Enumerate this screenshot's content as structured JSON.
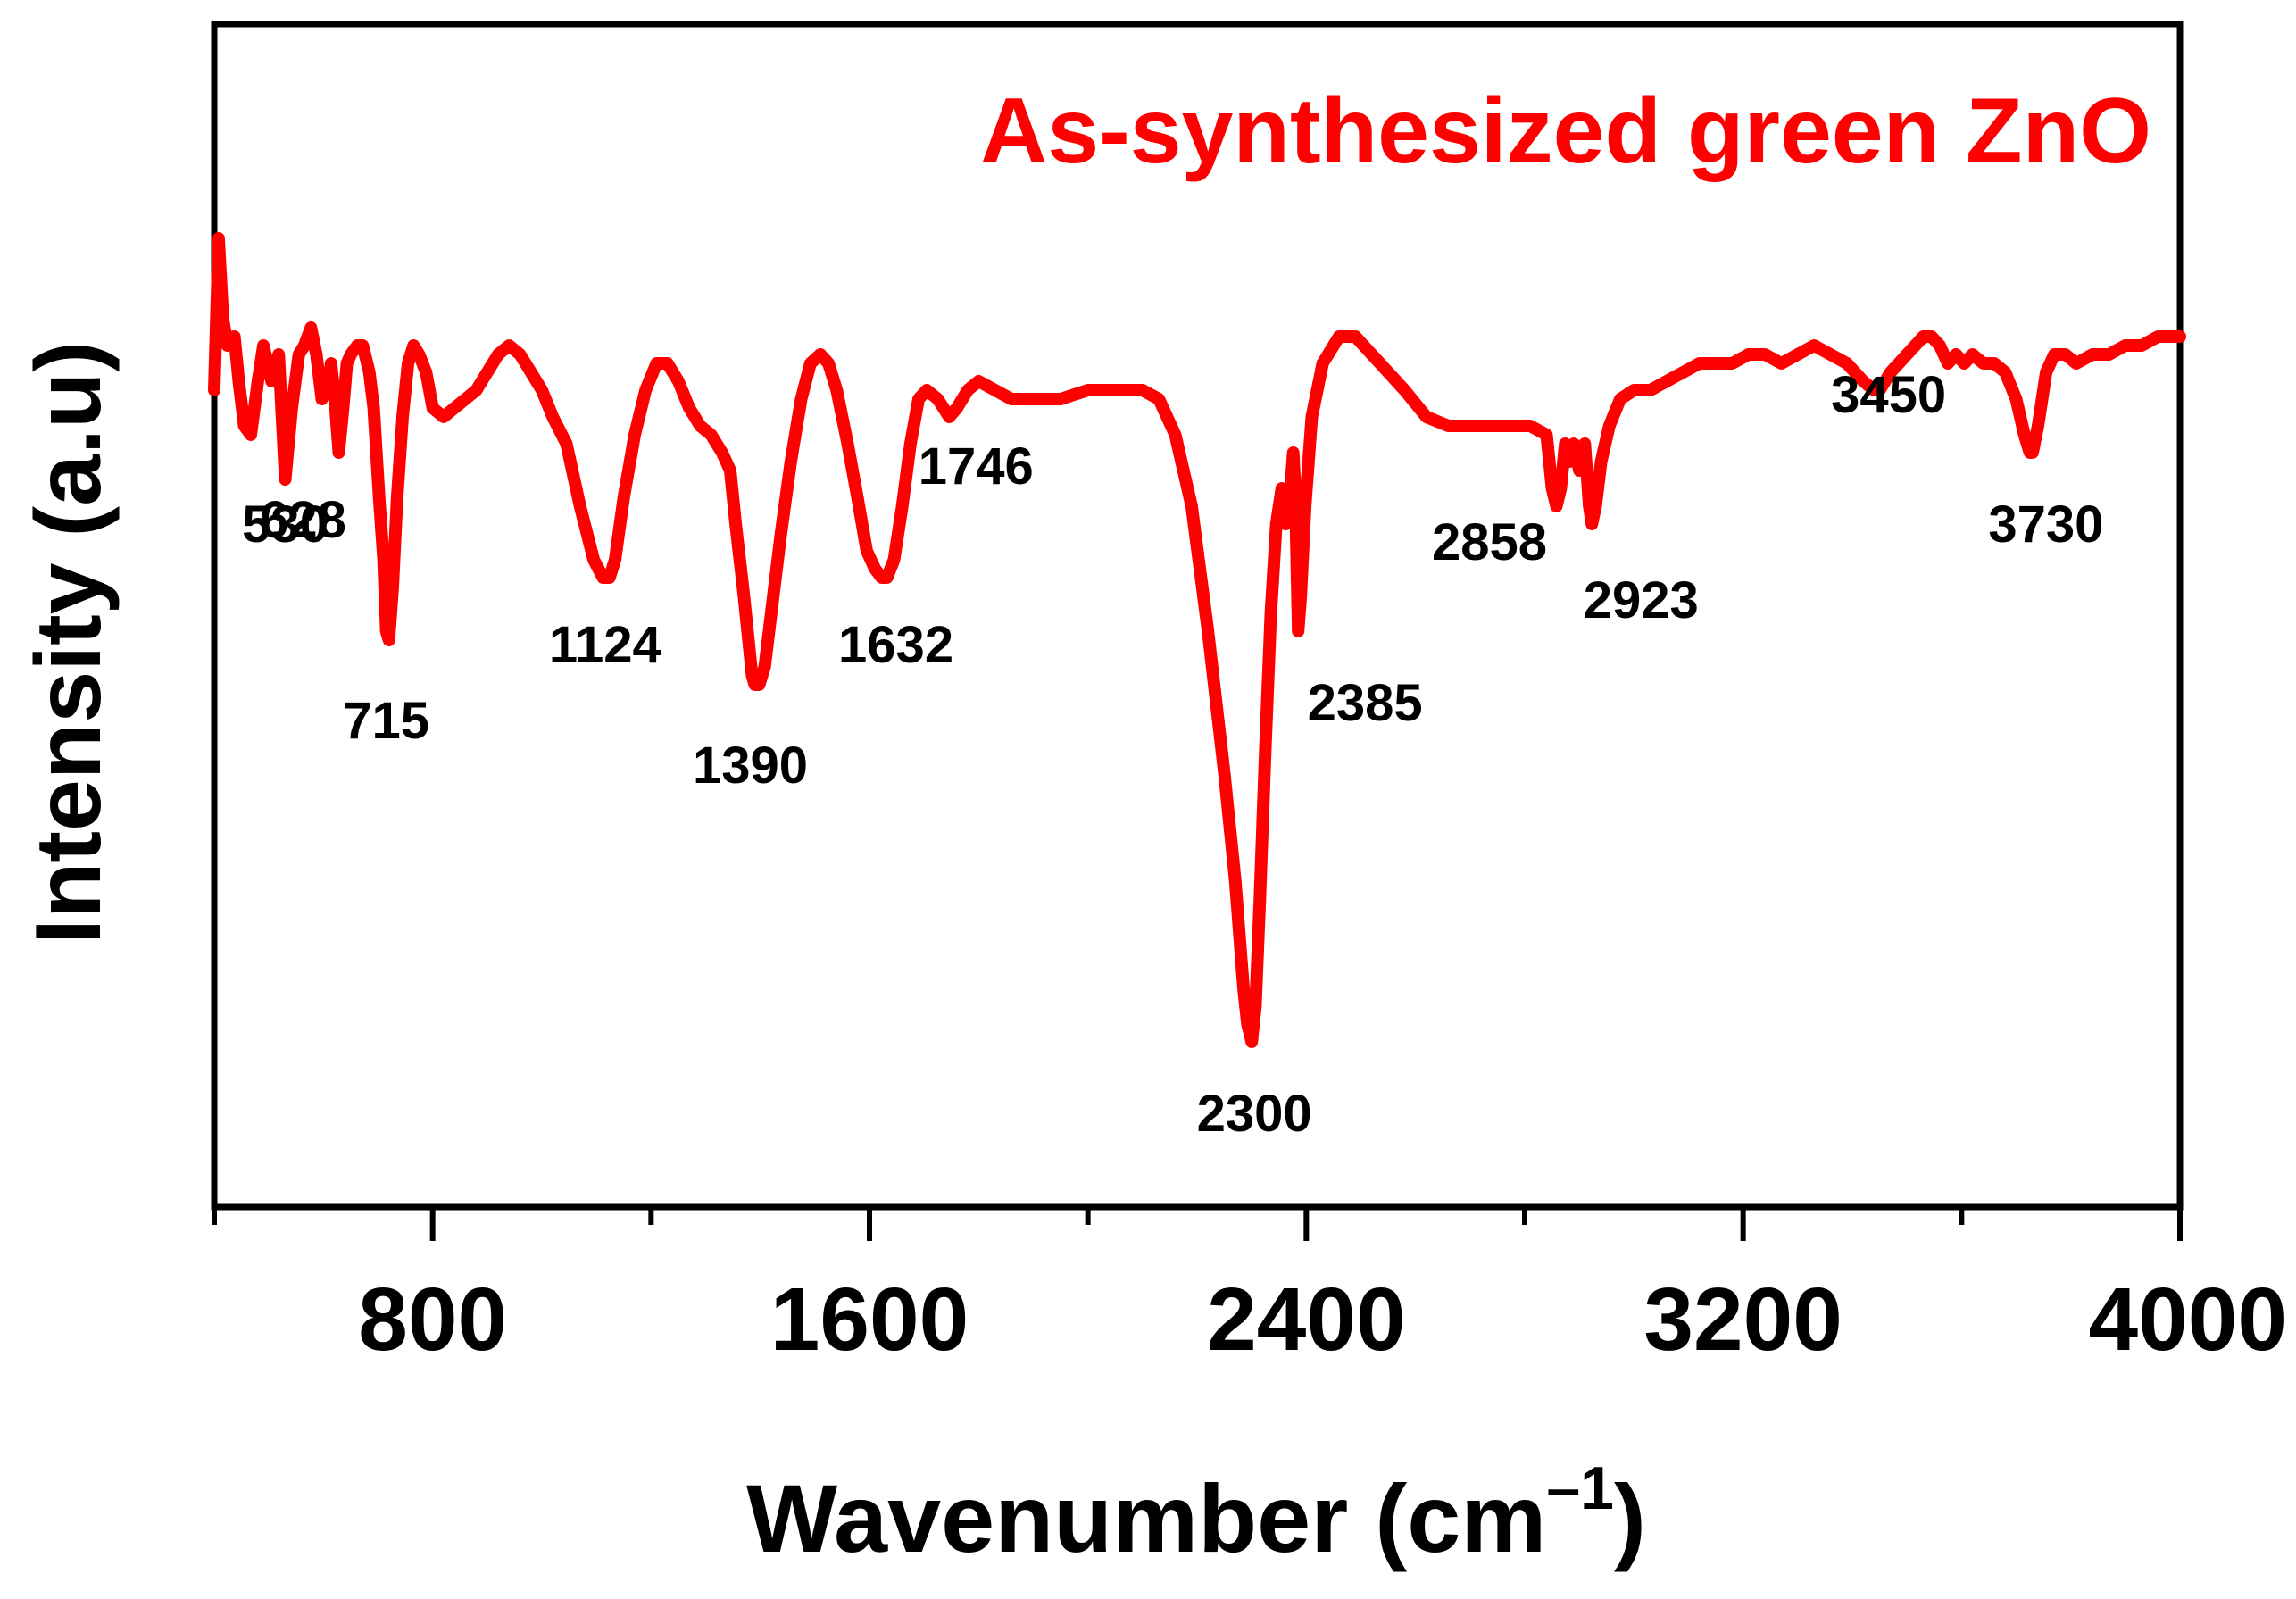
{
  "chart_data": {
    "type": "line",
    "title": "As-synthesized green ZnO",
    "xlabel": "Wavenumber (cm",
    "xlabel_sup": "–1",
    "xlabel_close": ")",
    "ylabel": "Intensity (a.u)",
    "xlim": [
      400,
      4000
    ],
    "ylim": [
      0,
      100
    ],
    "x_ticks_major": [
      800,
      1600,
      2400,
      3200,
      4000
    ],
    "x_tick_labels": [
      "800",
      "1600",
      "2400",
      "3200",
      "4000"
    ],
    "x_ticks_minor": [
      400,
      1200,
      2000,
      2800,
      3600
    ],
    "y_ticks_shown": false,
    "grid": false,
    "legend": "none",
    "colors": {
      "series": "#ff0000",
      "title": "#ff0000",
      "axis": "#000000",
      "text": "#000000"
    },
    "series": [
      {
        "name": "As-synthesized green ZnO",
        "points": [
          [
            400,
            75
          ],
          [
            408,
            92
          ],
          [
            416,
            83
          ],
          [
            424,
            80
          ],
          [
            437,
            81
          ],
          [
            445,
            76
          ],
          [
            455,
            71
          ],
          [
            467,
            70
          ],
          [
            480,
            76
          ],
          [
            490,
            80
          ],
          [
            505,
            76
          ],
          [
            518,
            79
          ],
          [
            530,
            65
          ],
          [
            542,
            73
          ],
          [
            555,
            79
          ],
          [
            565,
            80
          ],
          [
            577,
            82
          ],
          [
            587,
            79
          ],
          [
            597,
            74
          ],
          [
            607,
            75
          ],
          [
            614,
            78
          ],
          [
            622,
            73
          ],
          [
            628,
            68
          ],
          [
            636,
            73
          ],
          [
            643,
            78
          ],
          [
            650,
            79
          ],
          [
            662,
            80
          ],
          [
            672,
            80
          ],
          [
            684,
            77
          ],
          [
            692,
            73
          ],
          [
            702,
            63
          ],
          [
            710,
            56
          ],
          [
            715,
            48
          ],
          [
            720,
            47
          ],
          [
            727,
            53
          ],
          [
            735,
            63
          ],
          [
            745,
            72
          ],
          [
            755,
            78
          ],
          [
            765,
            80
          ],
          [
            775,
            79
          ],
          [
            788,
            77
          ],
          [
            800,
            73
          ],
          [
            820,
            72
          ],
          [
            840,
            73
          ],
          [
            860,
            74
          ],
          [
            880,
            75
          ],
          [
            900,
            77
          ],
          [
            920,
            79
          ],
          [
            940,
            80
          ],
          [
            960,
            79
          ],
          [
            980,
            77
          ],
          [
            1000,
            75
          ],
          [
            1020,
            72
          ],
          [
            1045,
            69
          ],
          [
            1070,
            62
          ],
          [
            1095,
            56
          ],
          [
            1112,
            54
          ],
          [
            1124,
            54
          ],
          [
            1134,
            56
          ],
          [
            1150,
            63
          ],
          [
            1170,
            70
          ],
          [
            1190,
            75
          ],
          [
            1210,
            78
          ],
          [
            1230,
            78
          ],
          [
            1250,
            76
          ],
          [
            1270,
            73
          ],
          [
            1290,
            71
          ],
          [
            1310,
            70
          ],
          [
            1330,
            68
          ],
          [
            1345,
            66
          ],
          [
            1355,
            60
          ],
          [
            1370,
            52
          ],
          [
            1385,
            43
          ],
          [
            1390,
            42
          ],
          [
            1398,
            42
          ],
          [
            1408,
            44
          ],
          [
            1422,
            51
          ],
          [
            1438,
            59
          ],
          [
            1456,
            67
          ],
          [
            1475,
            74
          ],
          [
            1492,
            78
          ],
          [
            1510,
            79
          ],
          [
            1525,
            78
          ],
          [
            1540,
            75
          ],
          [
            1560,
            69
          ],
          [
            1578,
            63
          ],
          [
            1595,
            57
          ],
          [
            1610,
            55
          ],
          [
            1622,
            54
          ],
          [
            1632,
            54
          ],
          [
            1645,
            56
          ],
          [
            1660,
            62
          ],
          [
            1675,
            69
          ],
          [
            1690,
            74
          ],
          [
            1705,
            75
          ],
          [
            1725,
            74
          ],
          [
            1746,
            72
          ],
          [
            1760,
            73
          ],
          [
            1780,
            75
          ],
          [
            1800,
            76
          ],
          [
            1830,
            75
          ],
          [
            1860,
            74
          ],
          [
            1900,
            74
          ],
          [
            1950,
            74
          ],
          [
            2000,
            75
          ],
          [
            2050,
            75
          ],
          [
            2100,
            75
          ],
          [
            2130,
            74
          ],
          [
            2160,
            70
          ],
          [
            2190,
            62
          ],
          [
            2220,
            48
          ],
          [
            2250,
            32
          ],
          [
            2270,
            20
          ],
          [
            2285,
            8
          ],
          [
            2292,
            4
          ],
          [
            2300,
            2
          ],
          [
            2307,
            6
          ],
          [
            2315,
            18
          ],
          [
            2325,
            35
          ],
          [
            2335,
            50
          ],
          [
            2345,
            60
          ],
          [
            2355,
            64
          ],
          [
            2362,
            60
          ],
          [
            2370,
            63
          ],
          [
            2376,
            68
          ],
          [
            2380,
            63
          ],
          [
            2385,
            48
          ],
          [
            2390,
            52
          ],
          [
            2398,
            62
          ],
          [
            2410,
            72
          ],
          [
            2430,
            78
          ],
          [
            2460,
            81
          ],
          [
            2490,
            81
          ],
          [
            2520,
            79
          ],
          [
            2550,
            77
          ],
          [
            2580,
            75
          ],
          [
            2620,
            72
          ],
          [
            2660,
            71
          ],
          [
            2700,
            71
          ],
          [
            2760,
            71
          ],
          [
            2810,
            71
          ],
          [
            2840,
            70
          ],
          [
            2850,
            64
          ],
          [
            2858,
            62
          ],
          [
            2866,
            64
          ],
          [
            2874,
            69
          ],
          [
            2882,
            67
          ],
          [
            2890,
            69
          ],
          [
            2900,
            66
          ],
          [
            2910,
            69
          ],
          [
            2918,
            62
          ],
          [
            2923,
            60
          ],
          [
            2930,
            62
          ],
          [
            2940,
            67
          ],
          [
            2955,
            71
          ],
          [
            2975,
            74
          ],
          [
            3000,
            75
          ],
          [
            3030,
            75
          ],
          [
            3060,
            76
          ],
          [
            3090,
            77
          ],
          [
            3120,
            78
          ],
          [
            3150,
            78
          ],
          [
            3180,
            78
          ],
          [
            3210,
            79
          ],
          [
            3240,
            79
          ],
          [
            3270,
            78
          ],
          [
            3300,
            79
          ],
          [
            3330,
            80
          ],
          [
            3360,
            79
          ],
          [
            3390,
            78
          ],
          [
            3420,
            76
          ],
          [
            3440,
            75
          ],
          [
            3450,
            75
          ],
          [
            3470,
            77
          ],
          [
            3500,
            79
          ],
          [
            3530,
            81
          ],
          [
            3545,
            81
          ],
          [
            3560,
            80
          ],
          [
            3575,
            78
          ],
          [
            3590,
            79
          ],
          [
            3605,
            78
          ],
          [
            3620,
            79
          ],
          [
            3640,
            78
          ],
          [
            3660,
            78
          ],
          [
            3680,
            77
          ],
          [
            3700,
            74
          ],
          [
            3715,
            70
          ],
          [
            3725,
            68
          ],
          [
            3730,
            68
          ],
          [
            3740,
            71
          ],
          [
            3755,
            77
          ],
          [
            3770,
            79
          ],
          [
            3790,
            79
          ],
          [
            3810,
            78
          ],
          [
            3840,
            79
          ],
          [
            3870,
            79
          ],
          [
            3900,
            80
          ],
          [
            3930,
            80
          ],
          [
            3960,
            81
          ],
          [
            4000,
            81
          ]
        ]
      }
    ],
    "annotations": [
      {
        "label": "530",
        "x": 530,
        "y": 65
      },
      {
        "label": "628",
        "x": 628,
        "y": 68
      },
      {
        "label": "715",
        "x": 715,
        "y": 47
      },
      {
        "label": "1124",
        "x": 1124,
        "y": 54
      },
      {
        "label": "1390",
        "x": 1390,
        "y": 42
      },
      {
        "label": "1632",
        "x": 1632,
        "y": 54
      },
      {
        "label": "1746",
        "x": 1746,
        "y": 72
      },
      {
        "label": "2300",
        "x": 2300,
        "y": 2
      },
      {
        "label": "2385",
        "x": 2385,
        "y": 48
      },
      {
        "label": "2858",
        "x": 2858,
        "y": 62
      },
      {
        "label": "2923",
        "x": 2923,
        "y": 60
      },
      {
        "label": "3450",
        "x": 3450,
        "y": 75
      },
      {
        "label": "3730",
        "x": 3730,
        "y": 68
      }
    ]
  }
}
